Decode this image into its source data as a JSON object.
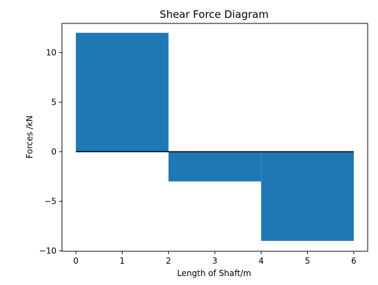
{
  "chart_data": {
    "type": "area",
    "title": "Shear Force Diagram",
    "xlabel": "Length of Shaft/m",
    "ylabel": "Forces /kN",
    "xlim": [
      -0.3,
      6.3
    ],
    "ylim": [
      -10.05,
      12.95
    ],
    "x_ticks": [
      0,
      1,
      2,
      3,
      4,
      5,
      6
    ],
    "x_tick_labels": [
      "0",
      "1",
      "2",
      "3",
      "4",
      "5",
      "6"
    ],
    "y_ticks": [
      -10,
      -5,
      0,
      5,
      10
    ],
    "y_tick_labels": [
      "−10",
      "−5",
      "0",
      "5",
      "10"
    ],
    "segments": [
      {
        "x_start": 0,
        "x_end": 2,
        "value": 12
      },
      {
        "x_start": 2,
        "x_end": 4,
        "value": -3
      },
      {
        "x_start": 4,
        "x_end": 6,
        "value": -9
      }
    ],
    "baseline": {
      "x_start": 0,
      "x_end": 6,
      "value": 0
    },
    "fill_color": "#1f77b4",
    "baseline_color": "#000000",
    "grid": false,
    "legend": "none"
  }
}
